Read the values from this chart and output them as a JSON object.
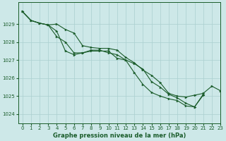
{
  "title": "Graphe pression niveau de la mer (hPa)",
  "bg_color": "#cde8e8",
  "grid_color": "#aacfcf",
  "line_color": "#1a5c2a",
  "ylim": [
    1023.5,
    1030.2
  ],
  "xlim": [
    -0.5,
    23
  ],
  "yticks": [
    1024,
    1025,
    1026,
    1027,
    1028,
    1029
  ],
  "xticks": [
    0,
    1,
    2,
    3,
    4,
    5,
    6,
    7,
    8,
    9,
    10,
    11,
    12,
    13,
    14,
    15,
    16,
    17,
    18,
    19,
    20,
    21,
    22,
    23
  ],
  "series": [
    [
      1029.7,
      1029.2,
      1029.05,
      1028.95,
      1028.6,
      1027.5,
      1027.3,
      1027.4,
      1027.5,
      1027.5,
      1027.5,
      1027.1,
      1027.0,
      1026.8,
      1026.5,
      1025.8,
      1025.5,
      1025.1,
      1024.9,
      1024.6,
      1024.4,
      1025.1,
      null,
      null
    ],
    [
      1029.7,
      1029.2,
      1029.05,
      1028.95,
      1028.3,
      1028.0,
      1027.4,
      1027.4,
      1027.55,
      1027.55,
      1027.4,
      1027.3,
      1027.0,
      1026.3,
      1025.65,
      1025.2,
      1025.0,
      1024.85,
      1024.75,
      1024.45,
      1024.4,
      1025.05,
      null,
      null
    ],
    [
      1029.7,
      1029.2,
      1029.05,
      1028.95,
      1029.0,
      1028.7,
      1028.5,
      1027.8,
      1027.7,
      1027.65,
      1027.65,
      1027.55,
      1027.15,
      1026.85,
      1026.45,
      1026.15,
      1025.75,
      1025.15,
      1025.0,
      1024.95,
      1025.05,
      1025.15,
      1025.55,
      1025.3
    ]
  ]
}
